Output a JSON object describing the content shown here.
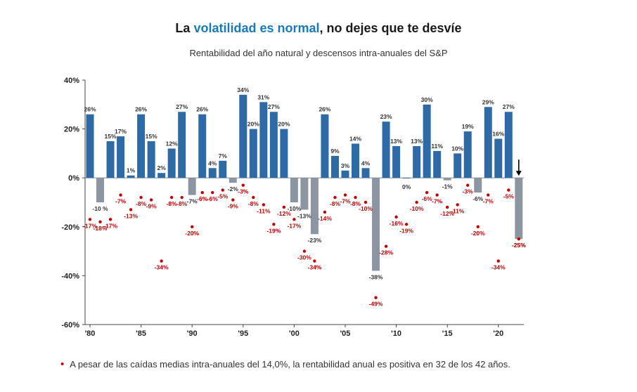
{
  "header": {
    "title_part1": "La ",
    "title_highlight": "volatilidad es normal",
    "title_part2": ", no dejes que te desvíe",
    "subtitle": "Rentabilidad del año natural y descensos intra-anuales del S&P"
  },
  "footnote": {
    "bullet": "•",
    "text": "A pesar de las caídas medias intra-anuales del 14,0%, la rentabilidad anual es positiva en 32 de los 42 años."
  },
  "colors": {
    "positive_bar": "#2e6aa5",
    "negative_bar": "#8c96a3",
    "drawdown_dot": "#c00000",
    "highlight_title": "#1a7ab8",
    "arrow": "#000000"
  },
  "chart_data": {
    "type": "bar",
    "x": [
      1980,
      1981,
      1982,
      1983,
      1984,
      1985,
      1986,
      1987,
      1988,
      1989,
      1990,
      1991,
      1992,
      1993,
      1994,
      1995,
      1996,
      1997,
      1998,
      1999,
      2000,
      2001,
      2002,
      2003,
      2004,
      2005,
      2006,
      2007,
      2008,
      2009,
      2010,
      2011,
      2012,
      2013,
      2014,
      2015,
      2016,
      2017,
      2018,
      2019,
      2020,
      2021,
      2022
    ],
    "series": [
      {
        "values": [
          26,
          -10,
          15,
          17,
          1,
          26,
          15,
          2,
          12,
          27,
          -7,
          26,
          4,
          7,
          -2,
          34,
          20,
          31,
          27,
          20,
          -10,
          -13,
          -23,
          26,
          9,
          3,
          14,
          4,
          -38,
          23,
          13,
          0,
          13,
          30,
          11,
          -1,
          10,
          19,
          -6,
          29,
          16,
          27,
          -25
        ],
        "labels": [
          "26%",
          "-10 %",
          "15%",
          "17%",
          "1%",
          "26%",
          "15%",
          "2%",
          "12%",
          "27%",
          "-7%",
          "26%",
          "4%",
          "7%",
          "-2%",
          "34%",
          "20%",
          "31%",
          "27%",
          "20%",
          "-10%",
          "-13%",
          "-23%",
          "26%",
          "9%",
          "3%",
          "14%",
          "4%",
          "-38%",
          "23%",
          "13%",
          "0%",
          "13%",
          "30%",
          "11%",
          "-1%",
          "10%",
          "19%",
          "-6%",
          "29%",
          "16%",
          "27%",
          "-25%"
        ]
      },
      {
        "values": [
          -17,
          -18,
          -17,
          -7,
          -13,
          -8,
          -9,
          -34,
          -8,
          -8,
          -20,
          -6,
          -6,
          -5,
          -9,
          -3,
          -8,
          -11,
          -19,
          -12,
          -17,
          -30,
          -34,
          -14,
          -8,
          -7,
          -8,
          -10,
          -49,
          -28,
          -16,
          -19,
          -10,
          -6,
          -7,
          -12,
          -11,
          -3,
          -20,
          -7,
          -34,
          -5,
          -25
        ],
        "labels": [
          "-17%",
          "-18%",
          "-17%",
          "-7%",
          "-13%",
          "-8%",
          "-9%",
          "-34%",
          "-8%",
          "-8%",
          "-20%",
          "-6%",
          "-6%",
          "-5%",
          "-9%",
          "-3%",
          "-8%",
          "-11%",
          "-19%",
          "-12%",
          "-17%",
          "-30%",
          "-34%",
          "-14%",
          "-8%",
          "-7%",
          "-8%",
          "-10%",
          "-49%",
          "-28%",
          "-16%",
          "-19%",
          "-10%",
          "-6%",
          "-7%",
          "-12%",
          "-11%",
          "-3%",
          "-20%",
          "-7%",
          "-34%",
          "-5%",
          "-25%"
        ]
      }
    ],
    "ylim": [
      -60,
      40
    ],
    "yticks": [
      40,
      20,
      0,
      -20,
      -40,
      -60
    ],
    "ytick_labels": [
      "40%",
      "20%",
      "0%",
      "-20%",
      "-40%",
      "-60%"
    ],
    "xticks": [
      1980,
      1985,
      1990,
      1995,
      2000,
      2005,
      2010,
      2015,
      2020
    ],
    "xtick_labels": [
      "'80",
      "'85",
      "'90",
      "'95",
      "'00",
      "'05",
      "'10",
      "'15",
      "'20"
    ],
    "grid": false,
    "arrow_year": 2022
  }
}
